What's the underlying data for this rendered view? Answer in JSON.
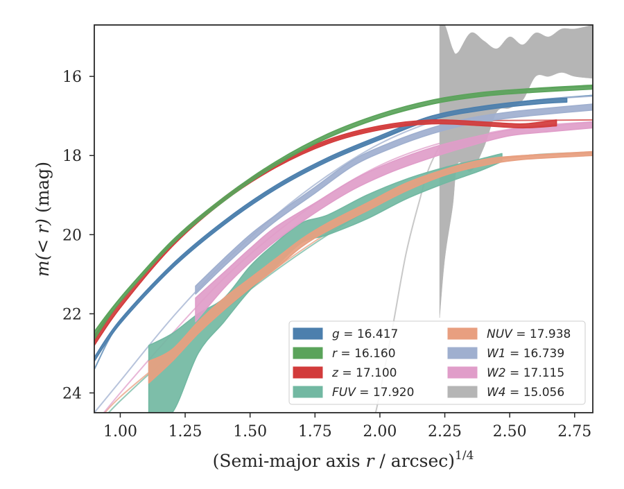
{
  "chart_data": {
    "type": "line",
    "xlabel": "(Semi-major axis r / arcsec)",
    "xlabel_parts": {
      "pre": "(Semi-major axis ",
      "var": "r",
      "post": " / arcsec)",
      "sup": "1/4"
    },
    "ylabel": "m(<r) (mag)",
    "ylabel_parts": {
      "pre": "m",
      "mid": "(< r)",
      "post": " (mag)"
    },
    "xlim": [
      0.9,
      2.82
    ],
    "ylim": [
      24.5,
      14.7
    ],
    "y_inverted": true,
    "grid": false,
    "legend_position": "lower-right",
    "xticks": [
      {
        "value": 1.0,
        "label": "1.00"
      },
      {
        "value": 1.25,
        "label": "1.25"
      },
      {
        "value": 1.5,
        "label": "1.50"
      },
      {
        "value": 1.75,
        "label": "1.75"
      },
      {
        "value": 2.0,
        "label": "2.00"
      },
      {
        "value": 2.25,
        "label": "2.25"
      },
      {
        "value": 2.5,
        "label": "2.50"
      },
      {
        "value": 2.75,
        "label": "2.75"
      }
    ],
    "yticks": [
      {
        "value": 16,
        "label": "16"
      },
      {
        "value": 18,
        "label": "18"
      },
      {
        "value": 20,
        "label": "20"
      },
      {
        "value": 22,
        "label": "22"
      },
      {
        "value": 24,
        "label": "24"
      }
    ],
    "series": [
      {
        "id": "g",
        "band": "g",
        "legend_value": "16.417",
        "color": "#4c7fad",
        "model": [
          [
            0.9,
            23.4
          ],
          [
            1.0,
            22.2
          ],
          [
            1.2,
            20.8
          ],
          [
            1.4,
            19.7
          ],
          [
            1.6,
            18.8
          ],
          [
            1.8,
            18.1
          ],
          [
            2.0,
            17.55
          ],
          [
            2.2,
            17.1
          ],
          [
            2.4,
            16.8
          ],
          [
            2.6,
            16.6
          ],
          [
            2.82,
            16.48
          ]
        ],
        "band_data": [
          [
            0.9,
            23.1,
            23.2
          ],
          [
            1.0,
            22.15,
            22.25
          ],
          [
            1.2,
            20.75,
            20.85
          ],
          [
            1.4,
            19.65,
            19.75
          ],
          [
            1.6,
            18.75,
            18.85
          ],
          [
            1.8,
            18.05,
            18.15
          ],
          [
            2.0,
            17.5,
            17.6
          ],
          [
            2.2,
            17.0,
            17.1
          ],
          [
            2.4,
            16.75,
            16.85
          ],
          [
            2.6,
            16.6,
            16.7
          ],
          [
            2.72,
            16.55,
            16.65
          ]
        ]
      },
      {
        "id": "r",
        "band": "r",
        "legend_value": "16.160",
        "color": "#5aa35a",
        "model": [
          [
            0.9,
            22.6
          ],
          [
            1.0,
            21.6
          ],
          [
            1.2,
            20.2
          ],
          [
            1.4,
            19.1
          ],
          [
            1.6,
            18.2
          ],
          [
            1.8,
            17.55
          ],
          [
            2.0,
            17.05
          ],
          [
            2.2,
            16.7
          ],
          [
            2.4,
            16.45
          ],
          [
            2.6,
            16.32
          ],
          [
            2.82,
            16.25
          ]
        ],
        "band_data": [
          [
            0.9,
            22.45,
            22.65
          ],
          [
            1.0,
            21.6,
            21.7
          ],
          [
            1.2,
            20.15,
            20.25
          ],
          [
            1.4,
            19.05,
            19.15
          ],
          [
            1.6,
            18.15,
            18.25
          ],
          [
            1.8,
            17.45,
            17.55
          ],
          [
            2.0,
            16.95,
            17.05
          ],
          [
            2.2,
            16.6,
            16.7
          ],
          [
            2.4,
            16.4,
            16.5
          ],
          [
            2.6,
            16.3,
            16.4
          ],
          [
            2.82,
            16.22,
            16.32
          ]
        ]
      },
      {
        "id": "z",
        "band": "z",
        "legend_value": "17.100",
        "color": "#d23b3b",
        "model": [
          [
            0.9,
            22.7
          ],
          [
            1.0,
            21.7
          ],
          [
            1.2,
            20.25
          ],
          [
            1.4,
            19.1
          ],
          [
            1.6,
            18.25
          ],
          [
            1.8,
            17.65
          ],
          [
            2.0,
            17.3
          ],
          [
            2.2,
            17.15
          ],
          [
            2.4,
            17.12
          ],
          [
            2.6,
            17.11
          ],
          [
            2.82,
            17.1
          ]
        ],
        "band_data": [
          [
            0.9,
            22.55,
            22.8
          ],
          [
            1.0,
            21.7,
            21.85
          ],
          [
            1.2,
            20.2,
            20.3
          ],
          [
            1.4,
            19.05,
            19.15
          ],
          [
            1.6,
            18.2,
            18.3
          ],
          [
            1.8,
            17.6,
            17.7
          ],
          [
            2.0,
            17.25,
            17.35
          ],
          [
            2.2,
            17.1,
            17.2
          ],
          [
            2.4,
            17.15,
            17.25
          ],
          [
            2.55,
            17.2,
            17.3
          ],
          [
            2.68,
            17.1,
            17.25
          ]
        ]
      },
      {
        "id": "FUV",
        "band": "FUV",
        "legend_value": "17.920",
        "color": "#72b8a2",
        "model": [
          [
            0.9,
            24.9
          ],
          [
            1.0,
            24.2
          ],
          [
            1.2,
            23.0
          ],
          [
            1.4,
            21.9
          ],
          [
            1.6,
            20.9
          ],
          [
            1.8,
            20.0
          ],
          [
            2.0,
            19.2
          ],
          [
            2.2,
            18.55
          ],
          [
            2.4,
            18.15
          ],
          [
            2.6,
            17.98
          ],
          [
            2.82,
            17.92
          ]
        ],
        "band_data": [
          [
            1.11,
            22.8,
            24.6
          ],
          [
            1.2,
            22.5,
            24.5
          ],
          [
            1.3,
            22.0,
            23.0
          ],
          [
            1.4,
            21.6,
            22.2
          ],
          [
            1.5,
            20.8,
            21.4
          ],
          [
            1.6,
            20.2,
            20.8
          ],
          [
            1.7,
            19.7,
            20.2
          ],
          [
            1.8,
            19.5,
            20.0
          ],
          [
            1.95,
            19.0,
            19.6
          ],
          [
            2.1,
            18.6,
            19.1
          ],
          [
            2.25,
            18.3,
            18.7
          ],
          [
            2.38,
            18.1,
            18.4
          ],
          [
            2.47,
            17.95,
            18.15
          ]
        ]
      },
      {
        "id": "NUV",
        "band": "NUV",
        "legend_value": "17.938",
        "color": "#e89f80",
        "model": [
          [
            0.9,
            24.8
          ],
          [
            1.0,
            24.1
          ],
          [
            1.2,
            23.0
          ],
          [
            1.4,
            21.9
          ],
          [
            1.6,
            20.85
          ],
          [
            1.8,
            19.95
          ],
          [
            2.0,
            19.15
          ],
          [
            2.2,
            18.5
          ],
          [
            2.4,
            18.15
          ],
          [
            2.6,
            18.0
          ],
          [
            2.82,
            17.95
          ]
        ],
        "band_data": [
          [
            1.11,
            23.2,
            23.75
          ],
          [
            1.2,
            22.9,
            23.2
          ],
          [
            1.3,
            22.2,
            22.5
          ],
          [
            1.4,
            21.6,
            21.9
          ],
          [
            1.5,
            21.1,
            21.35
          ],
          [
            1.6,
            20.6,
            20.85
          ],
          [
            1.7,
            20.1,
            20.3
          ],
          [
            1.8,
            19.7,
            19.9
          ],
          [
            1.95,
            19.2,
            19.4
          ],
          [
            2.1,
            18.7,
            18.9
          ],
          [
            2.25,
            18.35,
            18.5
          ],
          [
            2.4,
            18.1,
            18.25
          ],
          [
            2.55,
            18.0,
            18.1
          ],
          [
            2.82,
            17.9,
            18.0
          ]
        ]
      },
      {
        "id": "W1",
        "band": "W1",
        "legend_value": "16.739",
        "color": "#9fafcf",
        "model": [
          [
            0.9,
            24.5
          ],
          [
            1.0,
            23.7
          ],
          [
            1.2,
            22.1
          ],
          [
            1.4,
            20.7
          ],
          [
            1.6,
            19.5
          ],
          [
            1.8,
            18.5
          ],
          [
            2.0,
            17.7
          ],
          [
            2.2,
            17.15
          ],
          [
            2.4,
            16.8
          ],
          [
            2.6,
            16.6
          ],
          [
            2.82,
            16.5
          ]
        ],
        "band_data": [
          [
            1.29,
            21.3,
            21.5
          ],
          [
            1.4,
            20.6,
            20.8
          ],
          [
            1.5,
            20.0,
            20.2
          ],
          [
            1.6,
            19.5,
            19.65
          ],
          [
            1.75,
            18.8,
            18.95
          ],
          [
            1.9,
            18.1,
            18.25
          ],
          [
            2.05,
            17.65,
            17.8
          ],
          [
            2.2,
            17.3,
            17.45
          ],
          [
            2.35,
            17.05,
            17.2
          ],
          [
            2.5,
            16.9,
            17.05
          ],
          [
            2.65,
            16.8,
            16.95
          ],
          [
            2.82,
            16.7,
            16.85
          ]
        ]
      },
      {
        "id": "W2",
        "band": "W2",
        "legend_value": "17.115",
        "color": "#e09dc9",
        "model": [
          [
            0.9,
            24.8
          ],
          [
            1.0,
            24.0
          ],
          [
            1.2,
            22.5
          ],
          [
            1.4,
            21.1
          ],
          [
            1.6,
            19.95
          ],
          [
            1.8,
            19.0
          ],
          [
            2.0,
            18.25
          ],
          [
            2.2,
            17.75
          ],
          [
            2.4,
            17.45
          ],
          [
            2.6,
            17.25
          ],
          [
            2.82,
            17.15
          ]
        ],
        "band_data": [
          [
            1.29,
            21.6,
            22.2
          ],
          [
            1.4,
            20.95,
            21.35
          ],
          [
            1.5,
            20.35,
            20.7
          ],
          [
            1.6,
            19.8,
            20.15
          ],
          [
            1.75,
            19.2,
            19.45
          ],
          [
            1.9,
            18.6,
            18.85
          ],
          [
            2.05,
            18.15,
            18.4
          ],
          [
            2.2,
            17.8,
            18.05
          ],
          [
            2.35,
            17.55,
            17.75
          ],
          [
            2.5,
            17.35,
            17.5
          ],
          [
            2.65,
            17.25,
            17.4
          ],
          [
            2.82,
            17.15,
            17.3
          ]
        ]
      },
      {
        "id": "W4",
        "band": "W4",
        "legend_value": "15.056",
        "color": "#b5b5b5",
        "model": [
          [
            1.98,
            24.6
          ],
          [
            2.0,
            24.0
          ],
          [
            2.05,
            22.3
          ],
          [
            2.1,
            20.5
          ],
          [
            2.15,
            19.2
          ],
          [
            2.2,
            18.15
          ],
          [
            2.3,
            17.05
          ],
          [
            2.4,
            16.4
          ],
          [
            2.5,
            15.95
          ],
          [
            2.6,
            15.55
          ],
          [
            2.7,
            15.3
          ],
          [
            2.82,
            15.15
          ]
        ],
        "band_data": [
          [
            2.23,
            14.7,
            22.1
          ],
          [
            2.25,
            14.7,
            20.6
          ],
          [
            2.28,
            15.3,
            19.3
          ],
          [
            2.3,
            15.4,
            18.2
          ],
          [
            2.35,
            14.9,
            18.4
          ],
          [
            2.4,
            15.1,
            17.8
          ],
          [
            2.45,
            15.3,
            16.9
          ],
          [
            2.5,
            15.0,
            16.8
          ],
          [
            2.55,
            15.2,
            16.6
          ],
          [
            2.6,
            14.9,
            16.0
          ],
          [
            2.65,
            15.0,
            16.0
          ],
          [
            2.7,
            14.8,
            15.9
          ],
          [
            2.75,
            14.8,
            16.0
          ],
          [
            2.82,
            14.7,
            16.05
          ]
        ]
      }
    ]
  }
}
